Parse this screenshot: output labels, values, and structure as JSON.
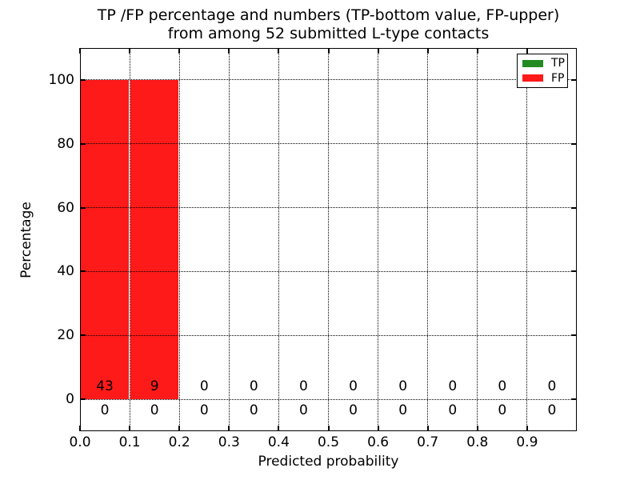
{
  "figure": {
    "title_line1": "TP /FP percentage and numbers (TP-bottom value, FP-upper)",
    "title_line2": "from among 52 submitted L-type contacts",
    "xlabel": "Predicted probability",
    "ylabel": "Percentage"
  },
  "legend": {
    "position": "upper right",
    "items": [
      {
        "label": "TP",
        "color": "#228b22"
      },
      {
        "label": "FP",
        "color": "#ff1a1a"
      }
    ]
  },
  "chart_data": {
    "type": "bar",
    "title": "TP /FP percentage and numbers (TP-bottom value, FP-upper) from among 52 submitted L-type contacts",
    "xlabel": "Predicted probability",
    "ylabel": "Percentage",
    "total_submitted_contacts": 52,
    "xlim": [
      0.0,
      1.0
    ],
    "ylim": [
      -10,
      110
    ],
    "grid": true,
    "legend_position": "upper right",
    "bin_edges": [
      0.0,
      0.1,
      0.2,
      0.3,
      0.4,
      0.5,
      0.6,
      0.7,
      0.8,
      0.9,
      1.0
    ],
    "x_tick_labels": [
      "0.0",
      "0.1",
      "0.2",
      "0.3",
      "0.4",
      "0.5",
      "0.6",
      "0.7",
      "0.8",
      "0.9"
    ],
    "y_tick_values": [
      0,
      20,
      40,
      60,
      80,
      100
    ],
    "series": [
      {
        "name": "TP",
        "color": "#228b22",
        "percent": [
          0,
          0,
          0,
          0,
          0,
          0,
          0,
          0,
          0,
          0
        ],
        "counts": [
          0,
          0,
          0,
          0,
          0,
          0,
          0,
          0,
          0,
          0
        ],
        "counts_row": "bottom"
      },
      {
        "name": "FP",
        "color": "#ff1a1a",
        "percent": [
          100,
          100,
          0,
          0,
          0,
          0,
          0,
          0,
          0,
          0
        ],
        "counts": [
          43,
          9,
          0,
          0,
          0,
          0,
          0,
          0,
          0,
          0
        ],
        "counts_row": "upper"
      }
    ]
  }
}
